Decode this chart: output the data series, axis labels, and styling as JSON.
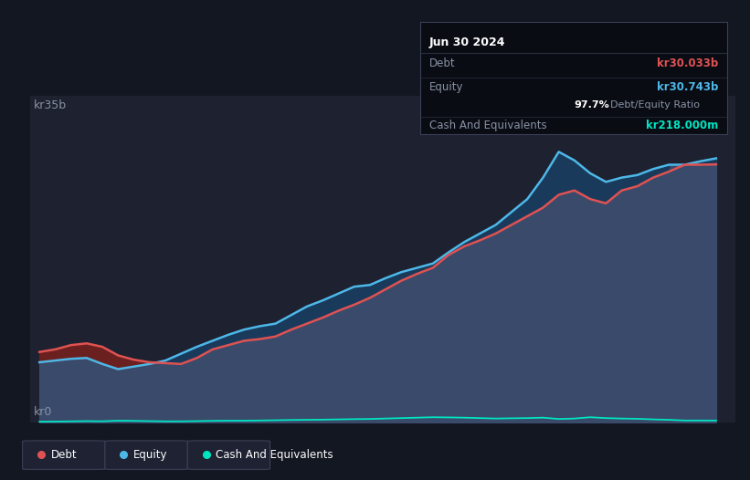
{
  "background_color": "#131722",
  "chart_bg_color": "#1e2130",
  "title": "Jun 30 2024",
  "ylabel_top": "kr35b",
  "ylabel_bottom": "kr0",
  "debt_color": "#e05252",
  "equity_color": "#4db8e8",
  "cash_color": "#00e5c0",
  "grid_color": "#2a2f3f",
  "text_color": "#8892a4",
  "tooltip_bg": "#0a0c14",
  "tooltip_border": "#2a2f3f",
  "years": [
    2013.75,
    2014.0,
    2014.25,
    2014.5,
    2014.75,
    2015.0,
    2015.25,
    2015.5,
    2015.75,
    2016.0,
    2016.25,
    2016.5,
    2016.75,
    2017.0,
    2017.25,
    2017.5,
    2017.75,
    2018.0,
    2018.25,
    2018.5,
    2018.75,
    2019.0,
    2019.25,
    2019.5,
    2019.75,
    2020.0,
    2020.25,
    2020.5,
    2020.75,
    2021.0,
    2021.25,
    2021.5,
    2021.75,
    2022.0,
    2022.25,
    2022.5,
    2022.75,
    2023.0,
    2023.25,
    2023.5,
    2023.75,
    2024.0,
    2024.25,
    2024.5
  ],
  "debt": [
    8.2,
    8.5,
    9.0,
    9.2,
    8.8,
    7.8,
    7.3,
    7.0,
    6.9,
    6.8,
    7.5,
    8.5,
    9.0,
    9.5,
    9.7,
    10.0,
    10.8,
    11.5,
    12.2,
    13.0,
    13.7,
    14.5,
    15.5,
    16.5,
    17.3,
    18.0,
    19.5,
    20.5,
    21.2,
    22.0,
    23.0,
    24.0,
    25.0,
    26.5,
    27.0,
    26.0,
    25.5,
    27.0,
    27.5,
    28.5,
    29.2,
    30.0,
    30.0,
    30.033
  ],
  "equity": [
    7.0,
    7.2,
    7.4,
    7.5,
    6.8,
    6.2,
    6.5,
    6.8,
    7.2,
    8.0,
    8.8,
    9.5,
    10.2,
    10.8,
    11.2,
    11.5,
    12.5,
    13.5,
    14.2,
    15.0,
    15.8,
    16.0,
    16.8,
    17.5,
    18.0,
    18.5,
    19.8,
    21.0,
    22.0,
    23.0,
    24.5,
    26.0,
    28.5,
    31.5,
    30.5,
    29.0,
    28.0,
    28.5,
    28.8,
    29.5,
    30.0,
    30.0,
    30.4,
    30.743
  ],
  "cash": [
    0.08,
    0.1,
    0.12,
    0.15,
    0.13,
    0.2,
    0.18,
    0.15,
    0.12,
    0.12,
    0.15,
    0.18,
    0.2,
    0.2,
    0.22,
    0.25,
    0.28,
    0.3,
    0.32,
    0.35,
    0.38,
    0.4,
    0.45,
    0.5,
    0.55,
    0.6,
    0.58,
    0.55,
    0.5,
    0.45,
    0.48,
    0.5,
    0.55,
    0.4,
    0.45,
    0.6,
    0.5,
    0.45,
    0.42,
    0.35,
    0.3,
    0.22,
    0.22,
    0.218
  ],
  "xlim": [
    2013.6,
    2024.8
  ],
  "ylim": [
    0,
    38
  ],
  "ylim_max": 35,
  "xticks": [
    2014,
    2015,
    2016,
    2017,
    2018,
    2019,
    2020,
    2021,
    2022,
    2023,
    2024
  ],
  "legend_labels": [
    "Debt",
    "Equity",
    "Cash And Equivalents"
  ],
  "tooltip_title": "Jun 30 2024",
  "tooltip_debt_label": "Debt",
  "tooltip_debt_value": "kr30.033b",
  "tooltip_equity_label": "Equity",
  "tooltip_equity_value": "kr30.743b",
  "tooltip_ratio": "97.7%",
  "tooltip_ratio_label": "Debt/Equity Ratio",
  "tooltip_cash_label": "Cash And Equivalents",
  "tooltip_cash_value": "kr218.000m",
  "equity_fill_color": "#3a4a6b",
  "debt_fill_color": "#6b2020"
}
